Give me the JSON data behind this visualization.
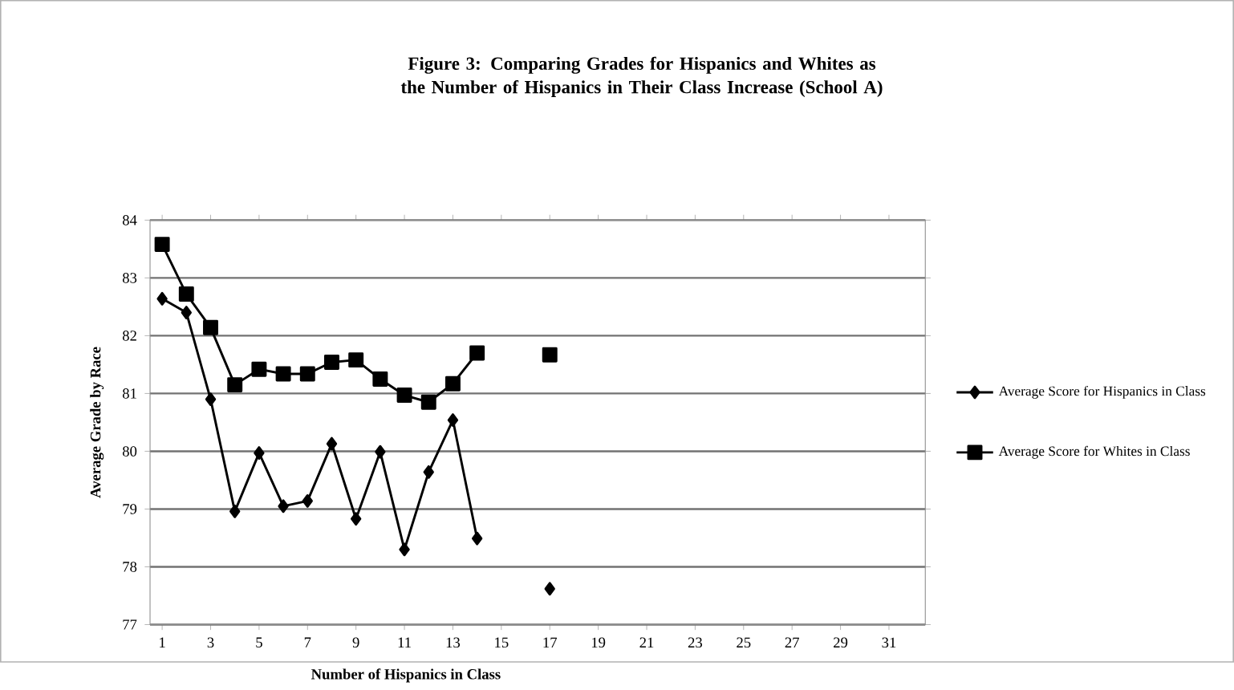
{
  "chart_data": {
    "type": "line",
    "title": "Figure 3: Comparing Grades for Hispanics and Whites as the Number of Hispanics in Their Class Increase (School A)",
    "xlabel": "Number of Hispanics in Class",
    "ylabel": "Average Grade by Race",
    "x": [
      1,
      2,
      3,
      4,
      5,
      6,
      7,
      8,
      9,
      10,
      11,
      12,
      13,
      14,
      15,
      16,
      17
    ],
    "series": [
      {
        "name": "Average Score for Hispanics  in Class",
        "color": "#000000",
        "marker": "diamond",
        "values": [
          82.64,
          82.4,
          80.9,
          78.96,
          79.97,
          79.05,
          79.14,
          80.13,
          78.83,
          79.99,
          78.3,
          79.64,
          80.54,
          78.49,
          null,
          null,
          77.62
        ]
      },
      {
        "name": "Average Score for Whites in Class",
        "color": "#000000",
        "marker": "square",
        "values": [
          83.58,
          82.72,
          82.14,
          81.15,
          81.42,
          81.34,
          81.34,
          81.54,
          81.58,
          81.25,
          80.97,
          80.85,
          81.17,
          81.7,
          null,
          null,
          81.67
        ]
      }
    ],
    "xlim": [
      0.5,
      32.5
    ],
    "xticks": [
      1,
      3,
      5,
      7,
      9,
      11,
      13,
      15,
      17,
      19,
      21,
      23,
      25,
      27,
      29,
      31
    ],
    "ylim": [
      77,
      84
    ],
    "yticks": [
      77,
      78,
      79,
      80,
      81,
      82,
      83,
      84
    ],
    "grid": "y",
    "legend": "right",
    "line_style": "solid"
  }
}
